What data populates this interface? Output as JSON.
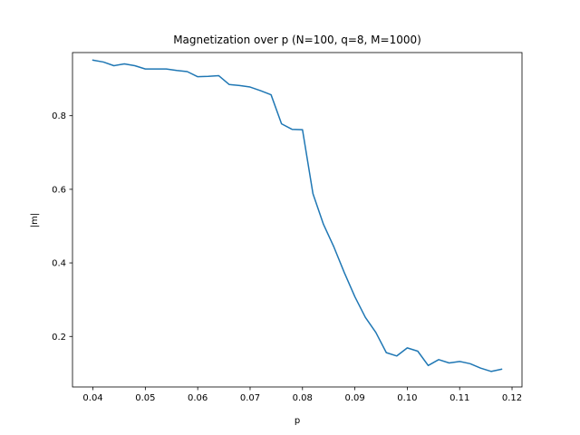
{
  "chart_data": {
    "type": "line",
    "title": "Magnetization over p (N=100, q=8, M=1000)",
    "xlabel": "p",
    "ylabel": "|m|",
    "xlim": [
      0.0361,
      0.1219
    ],
    "ylim": [
      0.0627,
      0.9717
    ],
    "xticks": [
      0.04,
      0.05,
      0.06,
      0.07,
      0.08,
      0.09,
      0.1,
      0.11,
      0.12
    ],
    "xtick_labels": [
      "0.04",
      "0.05",
      "0.06",
      "0.07",
      "0.08",
      "0.09",
      "0.10",
      "0.11",
      "0.12"
    ],
    "yticks": [
      0.2,
      0.4,
      0.6,
      0.8
    ],
    "ytick_labels": [
      "0.2",
      "0.4",
      "0.6",
      "0.8"
    ],
    "grid": false,
    "legend": "none",
    "series": [
      {
        "color": "#1f77b4",
        "x": [
          0.04,
          0.042,
          0.044,
          0.046,
          0.048,
          0.05,
          0.052,
          0.054,
          0.056,
          0.058,
          0.06,
          0.062,
          0.064,
          0.066,
          0.068,
          0.07,
          0.072,
          0.074,
          0.076,
          0.078,
          0.08,
          0.082,
          0.084,
          0.086,
          0.088,
          0.09,
          0.092,
          0.094,
          0.096,
          0.098,
          0.1,
          0.102,
          0.104,
          0.106,
          0.108,
          0.11,
          0.112,
          0.114,
          0.116,
          0.118
        ],
        "y": [
          0.951,
          0.946,
          0.936,
          0.941,
          0.936,
          0.927,
          0.927,
          0.927,
          0.923,
          0.92,
          0.906,
          0.907,
          0.909,
          0.885,
          0.882,
          0.878,
          0.868,
          0.857,
          0.778,
          0.763,
          0.762,
          0.588,
          0.505,
          0.443,
          0.373,
          0.308,
          0.252,
          0.211,
          0.156,
          0.147,
          0.169,
          0.16,
          0.121,
          0.137,
          0.128,
          0.132,
          0.126,
          0.114,
          0.105,
          0.111
        ]
      }
    ]
  }
}
